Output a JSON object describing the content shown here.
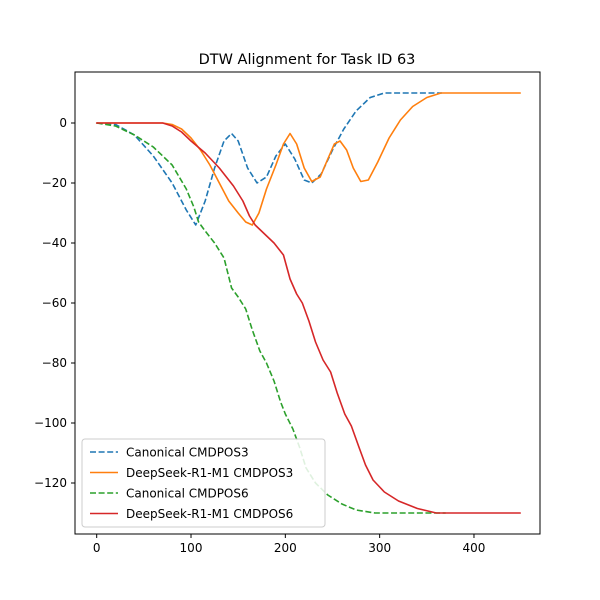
{
  "chart_data": {
    "type": "line",
    "title": "DTW Alignment for Task ID 63",
    "xlabel": "",
    "ylabel": "",
    "xlim": [
      -23,
      470
    ],
    "ylim": [
      -137,
      17
    ],
    "xticks": [
      0,
      100,
      200,
      300,
      400
    ],
    "yticks": [
      0,
      -20,
      -40,
      -60,
      -80,
      -100,
      -120
    ],
    "grid": false,
    "legend_position": "lower-left",
    "series": [
      {
        "name": "Canonical CMDPOS3",
        "color": "#1f77b4",
        "dash": "dashed",
        "points": [
          [
            0,
            0
          ],
          [
            20,
            -0.5
          ],
          [
            40,
            -4
          ],
          [
            60,
            -11
          ],
          [
            80,
            -20
          ],
          [
            95,
            -29
          ],
          [
            105,
            -34
          ],
          [
            115,
            -26
          ],
          [
            125,
            -15
          ],
          [
            135,
            -6
          ],
          [
            143,
            -3.5
          ],
          [
            150,
            -6
          ],
          [
            160,
            -15
          ],
          [
            170,
            -20
          ],
          [
            180,
            -18
          ],
          [
            190,
            -11
          ],
          [
            200,
            -7
          ],
          [
            210,
            -12
          ],
          [
            220,
            -19
          ],
          [
            228,
            -20
          ],
          [
            238,
            -17
          ],
          [
            250,
            -9
          ],
          [
            262,
            -2
          ],
          [
            275,
            4
          ],
          [
            290,
            8.5
          ],
          [
            305,
            10
          ],
          [
            320,
            10
          ],
          [
            366,
            10
          ]
        ]
      },
      {
        "name": "DeepSeek-R1-M1 CMDPOS3",
        "color": "#ff7f0e",
        "dash": "solid",
        "points": [
          [
            0,
            0
          ],
          [
            70,
            0
          ],
          [
            80,
            -0.5
          ],
          [
            90,
            -2
          ],
          [
            100,
            -5
          ],
          [
            110,
            -9
          ],
          [
            120,
            -14
          ],
          [
            130,
            -20
          ],
          [
            140,
            -26
          ],
          [
            150,
            -30
          ],
          [
            158,
            -33
          ],
          [
            165,
            -34
          ],
          [
            172,
            -30
          ],
          [
            180,
            -22
          ],
          [
            190,
            -14
          ],
          [
            198,
            -7
          ],
          [
            205,
            -3.5
          ],
          [
            212,
            -7
          ],
          [
            220,
            -15
          ],
          [
            228,
            -19.5
          ],
          [
            237,
            -18
          ],
          [
            245,
            -12
          ],
          [
            252,
            -7
          ],
          [
            258,
            -6
          ],
          [
            265,
            -9
          ],
          [
            272,
            -15
          ],
          [
            280,
            -19.5
          ],
          [
            288,
            -19
          ],
          [
            298,
            -13
          ],
          [
            310,
            -5
          ],
          [
            322,
            1
          ],
          [
            335,
            5.5
          ],
          [
            350,
            8.5
          ],
          [
            365,
            10
          ],
          [
            375,
            10
          ],
          [
            449,
            10
          ]
        ]
      },
      {
        "name": "Canonical CMDPOS6",
        "color": "#2ca02c",
        "dash": "dashed",
        "points": [
          [
            0,
            0
          ],
          [
            20,
            -1
          ],
          [
            40,
            -4
          ],
          [
            60,
            -8
          ],
          [
            80,
            -14
          ],
          [
            95,
            -22
          ],
          [
            103,
            -28
          ],
          [
            108,
            -33
          ],
          [
            115,
            -36
          ],
          [
            125,
            -40
          ],
          [
            135,
            -45
          ],
          [
            143,
            -55
          ],
          [
            150,
            -58
          ],
          [
            158,
            -62
          ],
          [
            165,
            -69
          ],
          [
            173,
            -76
          ],
          [
            180,
            -80
          ],
          [
            188,
            -86
          ],
          [
            195,
            -93
          ],
          [
            200,
            -97
          ],
          [
            208,
            -102
          ],
          [
            215,
            -108
          ],
          [
            222,
            -115
          ],
          [
            232,
            -120
          ],
          [
            245,
            -124
          ],
          [
            260,
            -127
          ],
          [
            275,
            -129
          ],
          [
            295,
            -130
          ],
          [
            320,
            -130
          ],
          [
            370,
            -130
          ]
        ]
      },
      {
        "name": "DeepSeek-R1-M1 CMDPOS6",
        "color": "#d62728",
        "dash": "solid",
        "points": [
          [
            0,
            0
          ],
          [
            70,
            0
          ],
          [
            80,
            -1
          ],
          [
            90,
            -3
          ],
          [
            100,
            -6
          ],
          [
            115,
            -10
          ],
          [
            130,
            -15
          ],
          [
            145,
            -21
          ],
          [
            155,
            -26
          ],
          [
            162,
            -31
          ],
          [
            168,
            -34
          ],
          [
            178,
            -37
          ],
          [
            188,
            -40
          ],
          [
            198,
            -44
          ],
          [
            205,
            -52
          ],
          [
            212,
            -57
          ],
          [
            218,
            -60
          ],
          [
            225,
            -66
          ],
          [
            232,
            -73
          ],
          [
            240,
            -79
          ],
          [
            248,
            -83
          ],
          [
            255,
            -90
          ],
          [
            263,
            -97
          ],
          [
            270,
            -101
          ],
          [
            278,
            -108
          ],
          [
            285,
            -114
          ],
          [
            293,
            -119
          ],
          [
            305,
            -123
          ],
          [
            320,
            -126
          ],
          [
            340,
            -128.5
          ],
          [
            360,
            -130
          ],
          [
            400,
            -130
          ],
          [
            449,
            -130
          ]
        ]
      }
    ]
  }
}
